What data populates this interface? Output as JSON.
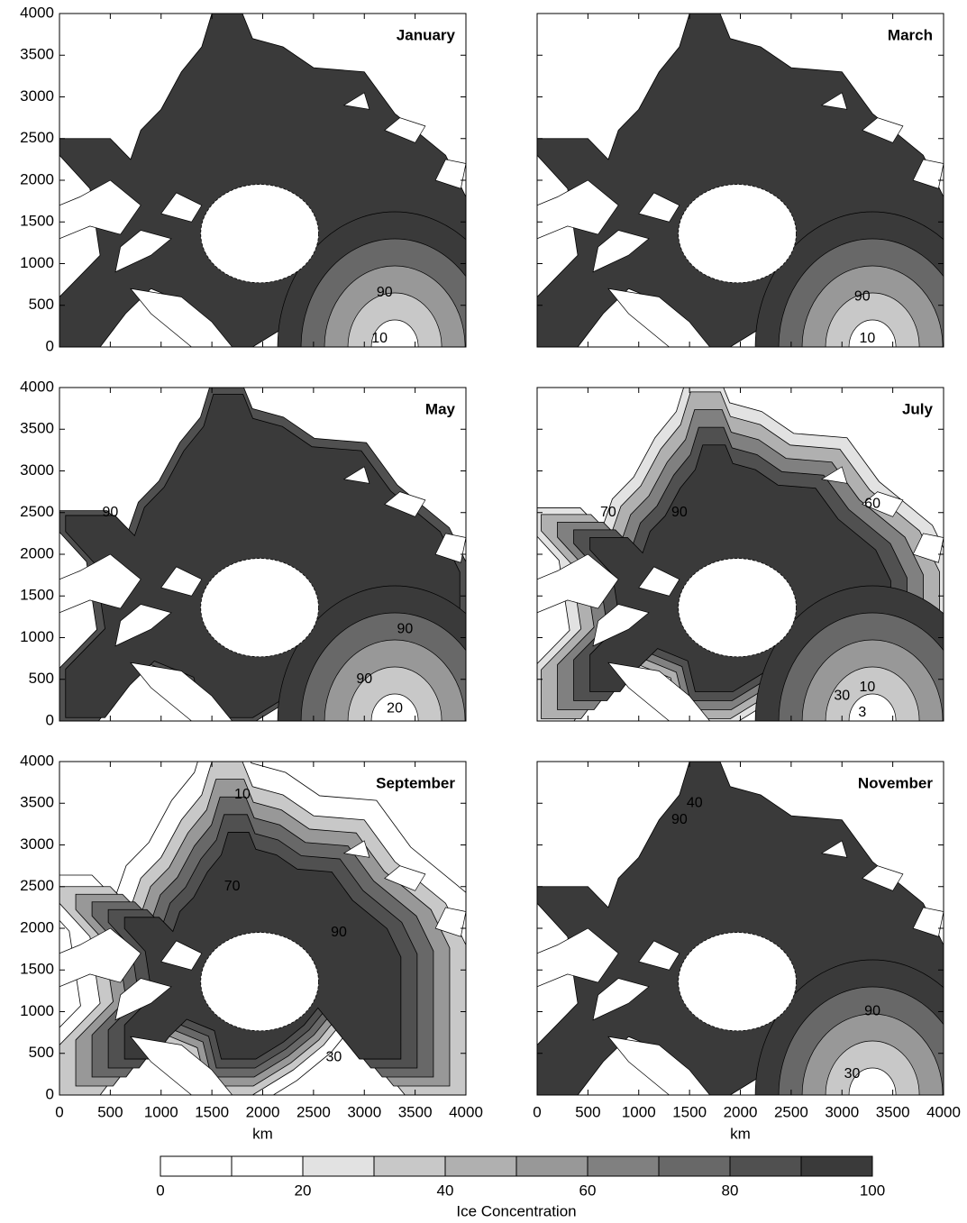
{
  "chart_data": [
    {
      "type": "contour",
      "title": "January",
      "xlim": [
        0,
        4000
      ],
      "ylim": [
        0,
        4000
      ],
      "xticks": [
        0,
        500,
        1000,
        1500,
        2000,
        2500,
        3000,
        3500,
        4000
      ],
      "yticks": [
        0,
        500,
        1000,
        1500,
        2000,
        2500,
        3000,
        3500,
        4000
      ],
      "contour_labels": [
        90,
        10
      ]
    },
    {
      "type": "contour",
      "title": "March",
      "xlim": [
        0,
        4000
      ],
      "ylim": [
        0,
        4000
      ],
      "xticks": [
        0,
        500,
        1000,
        1500,
        2000,
        2500,
        3000,
        3500,
        4000
      ],
      "yticks": [
        0,
        500,
        1000,
        1500,
        2000,
        2500,
        3000,
        3500,
        4000
      ],
      "contour_labels": [
        90,
        10
      ]
    },
    {
      "type": "contour",
      "title": "May",
      "xlim": [
        0,
        4000
      ],
      "ylim": [
        0,
        4000
      ],
      "xticks": [
        0,
        500,
        1000,
        1500,
        2000,
        2500,
        3000,
        3500,
        4000
      ],
      "yticks": [
        0,
        500,
        1000,
        1500,
        2000,
        2500,
        3000,
        3500,
        4000
      ],
      "contour_labels": [
        90,
        90,
        90,
        20
      ]
    },
    {
      "type": "contour",
      "title": "July",
      "xlim": [
        0,
        4000
      ],
      "ylim": [
        0,
        4000
      ],
      "xticks": [
        0,
        500,
        1000,
        1500,
        2000,
        2500,
        3000,
        3500,
        4000
      ],
      "yticks": [
        0,
        500,
        1000,
        1500,
        2000,
        2500,
        3000,
        3500,
        4000
      ],
      "contour_labels": [
        70,
        90,
        60,
        30,
        10,
        3
      ]
    },
    {
      "type": "contour",
      "title": "September",
      "xlabel": "km",
      "xlim": [
        0,
        4000
      ],
      "ylim": [
        0,
        4000
      ],
      "xticks": [
        0,
        500,
        1000,
        1500,
        2000,
        2500,
        3000,
        3500,
        4000
      ],
      "yticks": [
        0,
        500,
        1000,
        1500,
        2000,
        2500,
        3000,
        3500,
        4000
      ],
      "contour_labels": [
        10,
        70,
        90,
        30
      ]
    },
    {
      "type": "contour",
      "title": "November",
      "xlabel": "km",
      "xlim": [
        0,
        4000
      ],
      "ylim": [
        0,
        4000
      ],
      "xticks": [
        0,
        500,
        1000,
        1500,
        2000,
        2500,
        3000,
        3500,
        4000
      ],
      "yticks": [
        0,
        500,
        1000,
        1500,
        2000,
        2500,
        3000,
        3500,
        4000
      ],
      "contour_labels": [
        40,
        90,
        90,
        30
      ]
    },
    {
      "type": "colorbar",
      "label": "Ice Concentration",
      "levels": [
        0,
        10,
        20,
        30,
        40,
        50,
        60,
        70,
        80,
        90,
        100
      ],
      "colors": [
        "#ffffff",
        "#ffffff",
        "#e2e2e2",
        "#c8c8c8",
        "#b0b0b0",
        "#989898",
        "#808080",
        "#686868",
        "#505050",
        "#3a3a3a"
      ],
      "ticks": [
        0,
        20,
        40,
        60,
        80,
        100
      ]
    }
  ]
}
